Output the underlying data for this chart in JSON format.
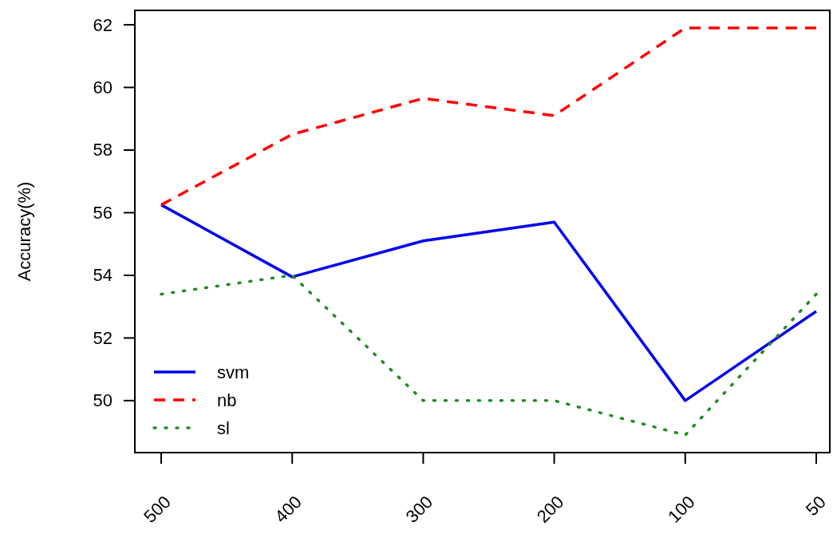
{
  "chart_data": {
    "type": "line",
    "ylabel": "Accuracy(%)",
    "categories": [
      "500",
      "400",
      "300",
      "200",
      "100",
      "50"
    ],
    "ylim": [
      48.34,
      62.46
    ],
    "yticks": [
      50,
      52,
      54,
      56,
      58,
      60,
      62
    ],
    "grid": false,
    "legend": "bottom left",
    "series": [
      {
        "name": "svm",
        "color": "#0000ee",
        "line_style": "solid",
        "values": [
          56.25,
          53.95,
          55.1,
          55.7,
          50,
          52.85
        ]
      },
      {
        "name": "nb",
        "color": "#ff0000",
        "line_style": "dashed",
        "values": [
          56.25,
          58.5,
          59.65,
          59.1,
          61.9,
          61.9
        ]
      },
      {
        "name": "sl",
        "color": "#228b22",
        "line_style": "dotted",
        "values": [
          53.4,
          54,
          50,
          50,
          48.9,
          53.4
        ]
      }
    ]
  }
}
